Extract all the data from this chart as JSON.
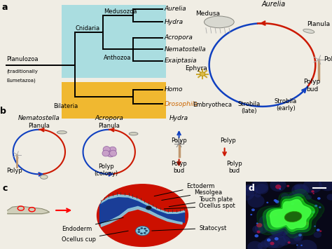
{
  "bg_color": "#f0ede4",
  "panel_a": {
    "clade_bg_cyan": "#aadde0",
    "clade_bg_orange": "#f0b830",
    "tree_taxa": [
      "Aurelia",
      "Hydra",
      "Acropora",
      "Nematostella",
      "Exaiptasia",
      "Homo",
      "Drosophila"
    ],
    "homo_color": "#000000",
    "drosophila_color": "#cc6600"
  },
  "panel_b": {
    "arrow_blue": "#1040c0",
    "arrow_red": "#cc1800"
  },
  "panel_c": {
    "bg_color": "#e8d9a8",
    "circle_red": "#cc1000",
    "dark_blue": "#1040a0",
    "light_blue": "#60a8cc",
    "light_blue2": "#88c8e0"
  },
  "panel_d": {
    "bg_dark": "#080818",
    "green": "#22ee22",
    "blue_cells": "#2244ee"
  }
}
